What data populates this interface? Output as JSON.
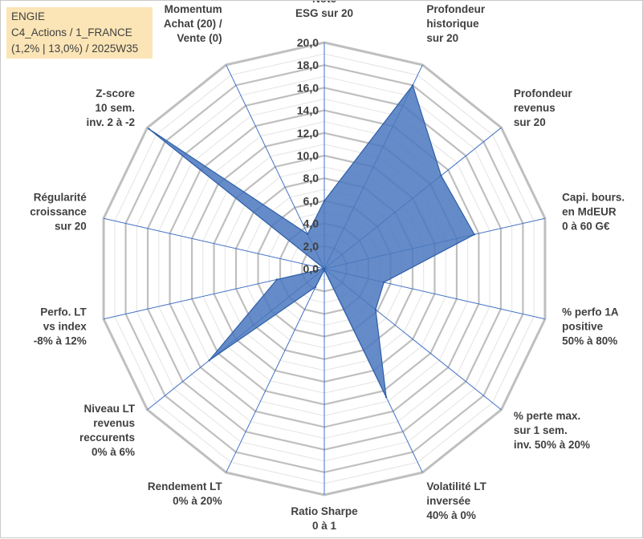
{
  "header": {
    "line1": "ENGIE",
    "line2": "C4_Actions / 1_FRANCE",
    "line3": "(1,2% | 13,0%) / 2025W35"
  },
  "colors": {
    "fill": "#4a78be",
    "stroke": "#2e5fa8",
    "grid": "#bfbfbf",
    "spoke": "#4472c4",
    "text": "#404040",
    "title_bg": "#fbe5b6"
  },
  "chart_data": {
    "type": "radar",
    "title": "",
    "rmin": 0,
    "rmax": 20,
    "tick_step": 2,
    "tick_labels": [
      "0,0",
      "2,0",
      "4,0",
      "6,0",
      "8,0",
      "10,0",
      "12,0",
      "14,0",
      "16,0",
      "18,0",
      "20,0"
    ],
    "minor_gridlines": true,
    "categories": [
      [
        "Note",
        "ESG sur 20"
      ],
      [
        "Profondeur",
        "historique",
        "sur 20"
      ],
      [
        "Profondeur",
        "revenus",
        "sur 20"
      ],
      [
        "Capi. bours.",
        "en MdEUR",
        "0 à 60 G€"
      ],
      [
        "% perfo 1A",
        "positive",
        "50% à 80%"
      ],
      [
        "% perte max.",
        "sur 1 sem.",
        "inv. 50% à 20%"
      ],
      [
        "Volatilité LT",
        "inversée",
        "40% à 0%"
      ],
      [
        "Ratio Sharpe",
        "0 à 1"
      ],
      [
        "Rendement LT",
        "0% à 20%"
      ],
      [
        "Niveau LT",
        "revenus",
        "reccurents",
        "0% à 6%"
      ],
      [
        "Perfo. LT",
        "vs index",
        "-8% à 12%"
      ],
      [
        "Régularité",
        "croissance",
        "sur 20"
      ],
      [
        "Z-score",
        "10 sem.",
        "inv. 2 à -2"
      ],
      [
        "Momentum",
        "Achat (20) /",
        "Vente (0)"
      ]
    ],
    "series": [
      {
        "values": [
          6.0,
          18.0,
          13.2,
          13.6,
          5.4,
          5.8,
          12.6,
          0.1,
          1.8,
          13.0,
          4.3,
          0.0,
          19.8,
          3.4
        ]
      }
    ]
  }
}
